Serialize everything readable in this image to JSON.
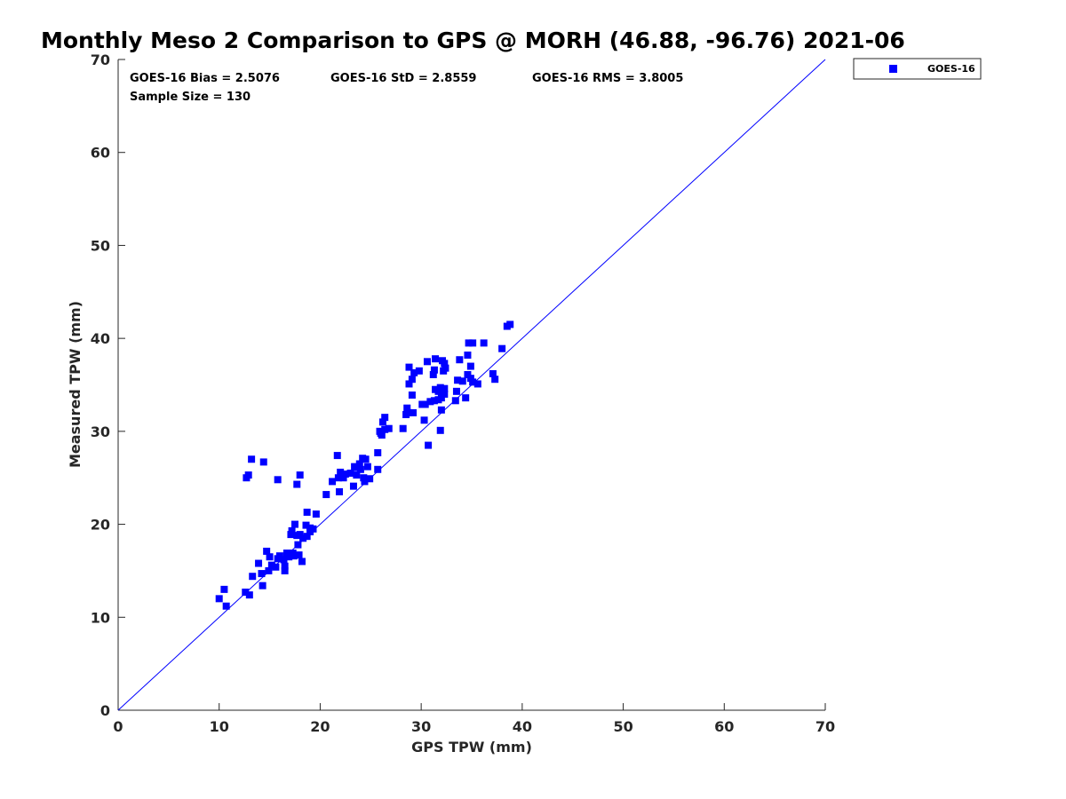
{
  "chart_data": {
    "type": "scatter",
    "title": "Monthly Meso 2 Comparison to GPS @ MORH (46.88, -96.76) 2021-06",
    "xlabel": "GPS TPW (mm)",
    "ylabel": "Measured TPW (mm)",
    "xlim": [
      0,
      70
    ],
    "ylim": [
      0,
      70
    ],
    "xticks": [
      0,
      10,
      20,
      30,
      40,
      50,
      60,
      70
    ],
    "yticks": [
      0,
      10,
      20,
      30,
      40,
      50,
      60,
      70
    ],
    "grid": false,
    "legend_position": "outside-top-right",
    "reference_line": {
      "from": [
        0,
        0
      ],
      "to": [
        70,
        70
      ],
      "color": "#0000ff"
    },
    "stats": {
      "bias": "GOES-16 Bias = 2.5076",
      "std": "GOES-16 StD = 2.8559",
      "rms": "GOES-16 RMS = 3.8005",
      "sample": "Sample Size = 130"
    },
    "series": [
      {
        "name": "GOES-16",
        "color": "#0000ff",
        "marker": "square",
        "points": [
          [
            10.0,
            12.0
          ],
          [
            10.5,
            13.0
          ],
          [
            10.7,
            11.2
          ],
          [
            12.6,
            12.7
          ],
          [
            13.0,
            12.4
          ],
          [
            13.3,
            14.4
          ],
          [
            13.9,
            15.8
          ],
          [
            14.2,
            14.7
          ],
          [
            14.3,
            13.4
          ],
          [
            14.7,
            17.1
          ],
          [
            14.9,
            15.0
          ],
          [
            15.0,
            16.5
          ],
          [
            15.2,
            15.6
          ],
          [
            15.6,
            15.4
          ],
          [
            15.8,
            16.3
          ],
          [
            16.4,
            16.2
          ],
          [
            16.5,
            15.5
          ],
          [
            16.5,
            15.0
          ],
          [
            16.7,
            16.9
          ],
          [
            16.9,
            16.5
          ],
          [
            17.1,
            18.9
          ],
          [
            17.2,
            19.3
          ],
          [
            17.4,
            16.6
          ],
          [
            17.5,
            20.0
          ],
          [
            17.7,
            18.8
          ],
          [
            17.8,
            17.8
          ],
          [
            17.9,
            16.7
          ],
          [
            18.0,
            18.9
          ],
          [
            18.2,
            16.0
          ],
          [
            18.3,
            18.5
          ],
          [
            18.6,
            19.9
          ],
          [
            18.7,
            21.3
          ],
          [
            18.7,
            18.7
          ],
          [
            19.0,
            19.6
          ],
          [
            19.3,
            19.5
          ],
          [
            19.6,
            21.1
          ],
          [
            12.7,
            25.0
          ],
          [
            12.9,
            25.3
          ],
          [
            13.2,
            27.0
          ],
          [
            14.4,
            26.7
          ],
          [
            15.8,
            24.8
          ],
          [
            17.7,
            24.3
          ],
          [
            18.0,
            25.3
          ],
          [
            20.6,
            23.2
          ],
          [
            21.2,
            24.6
          ],
          [
            21.7,
            27.4
          ],
          [
            21.8,
            25.0
          ],
          [
            21.9,
            23.5
          ],
          [
            22.0,
            25.6
          ],
          [
            22.3,
            25.0
          ],
          [
            22.5,
            25.4
          ],
          [
            23.0,
            25.5
          ],
          [
            23.3,
            24.1
          ],
          [
            23.5,
            26.1
          ],
          [
            23.6,
            25.3
          ],
          [
            23.9,
            26.5
          ],
          [
            24.0,
            25.9
          ],
          [
            24.2,
            27.1
          ],
          [
            24.3,
            25.0
          ],
          [
            24.5,
            27.0
          ],
          [
            24.4,
            24.6
          ],
          [
            24.7,
            26.2
          ],
          [
            24.9,
            24.9
          ],
          [
            25.7,
            25.9
          ],
          [
            25.7,
            27.7
          ],
          [
            25.9,
            30.0
          ],
          [
            26.1,
            29.6
          ],
          [
            26.2,
            31.0
          ],
          [
            26.4,
            31.5
          ],
          [
            26.4,
            30.2
          ],
          [
            26.8,
            30.3
          ],
          [
            28.2,
            30.3
          ],
          [
            28.5,
            31.8
          ],
          [
            28.6,
            32.5
          ],
          [
            28.7,
            32.0
          ],
          [
            28.8,
            36.9
          ],
          [
            28.8,
            35.1
          ],
          [
            29.1,
            35.6
          ],
          [
            29.1,
            33.9
          ],
          [
            29.2,
            32.0
          ],
          [
            29.3,
            36.3
          ],
          [
            29.8,
            36.5
          ],
          [
            30.1,
            32.9
          ],
          [
            30.3,
            31.2
          ],
          [
            30.4,
            32.9
          ],
          [
            30.6,
            37.5
          ],
          [
            30.7,
            28.5
          ],
          [
            30.9,
            33.2
          ],
          [
            31.2,
            36.1
          ],
          [
            31.3,
            36.6
          ],
          [
            31.3,
            33.3
          ],
          [
            31.4,
            37.8
          ],
          [
            31.4,
            34.5
          ],
          [
            31.7,
            34.3
          ],
          [
            31.7,
            33.4
          ],
          [
            31.9,
            30.1
          ],
          [
            31.9,
            34.7
          ],
          [
            32.0,
            32.3
          ],
          [
            32.0,
            33.6
          ],
          [
            32.1,
            37.6
          ],
          [
            32.2,
            36.5
          ],
          [
            32.3,
            37.3
          ],
          [
            32.3,
            34.6
          ],
          [
            32.3,
            34.0
          ],
          [
            32.4,
            36.8
          ],
          [
            33.4,
            33.3
          ],
          [
            33.5,
            34.3
          ],
          [
            33.6,
            35.5
          ],
          [
            33.8,
            37.7
          ],
          [
            34.1,
            35.4
          ],
          [
            34.4,
            33.6
          ],
          [
            34.6,
            36.1
          ],
          [
            34.6,
            38.2
          ],
          [
            34.7,
            39.5
          ],
          [
            34.9,
            35.7
          ],
          [
            34.9,
            37.0
          ],
          [
            35.1,
            39.5
          ],
          [
            35.1,
            35.3
          ],
          [
            35.6,
            35.1
          ],
          [
            36.2,
            39.5
          ],
          [
            37.1,
            36.2
          ],
          [
            37.3,
            35.6
          ],
          [
            38.0,
            38.9
          ],
          [
            38.5,
            41.3
          ],
          [
            38.8,
            41.5
          ],
          [
            26.0,
            29.8
          ],
          [
            23.4,
            26.2
          ],
          [
            17.3,
            16.9
          ],
          [
            16.0,
            16.6
          ],
          [
            19.0,
            19.2
          ]
        ]
      }
    ]
  }
}
